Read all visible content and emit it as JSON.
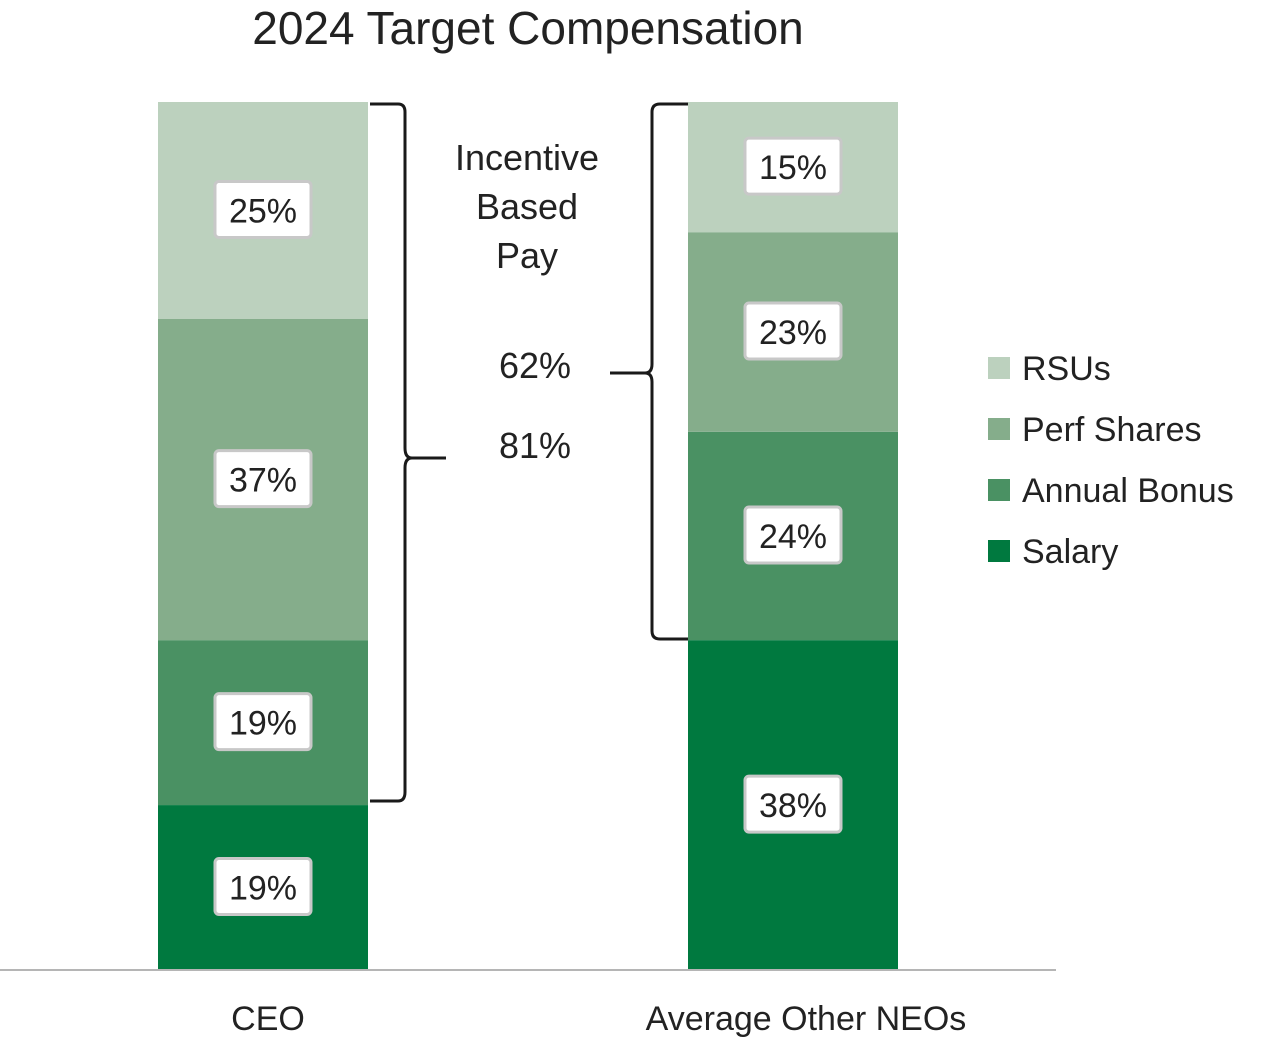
{
  "chart_data": {
    "type": "bar",
    "stacked": true,
    "title": "2024 Target Compensation",
    "categories": [
      "CEO",
      "Average Other NEOs"
    ],
    "series": [
      {
        "name": "Salary",
        "color": "#00793f",
        "values": [
          19,
          38
        ],
        "labels": [
          "19%",
          "38%"
        ]
      },
      {
        "name": "Annual Bonus",
        "color": "#4a9163",
        "values": [
          19,
          24
        ],
        "labels": [
          "19%",
          "24%"
        ]
      },
      {
        "name": "Perf Shares",
        "color": "#85ad8b",
        "values": [
          37,
          23
        ],
        "labels": [
          "37%",
          "23%"
        ]
      },
      {
        "name": "RSUs",
        "color": "#bcd1be",
        "values": [
          25,
          15
        ],
        "labels": [
          "25%",
          "15%"
        ]
      }
    ],
    "legend_order": [
      "RSUs",
      "Perf Shares",
      "Annual Bonus",
      "Salary"
    ],
    "legend_position": "right",
    "ylim": [
      0,
      100
    ],
    "annotations": {
      "bracket_label_lines": [
        "Incentive",
        "Based",
        "Pay"
      ],
      "neo_incentive": "62%",
      "ceo_incentive": "81%"
    }
  }
}
